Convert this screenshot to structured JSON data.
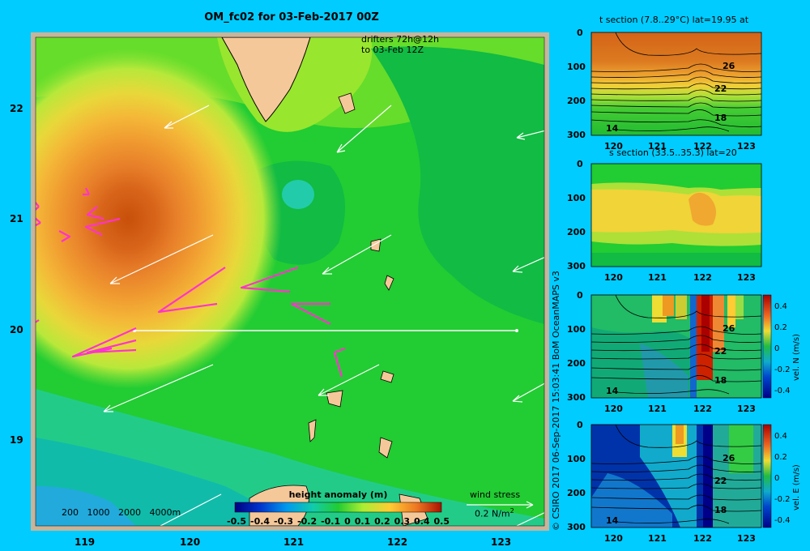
{
  "main_map": {
    "title": "OM_fc02 for 03-Feb-2017 00Z",
    "drifters_line1": "drifters 72h@12h",
    "drifters_line2": "to 03-Feb 12Z",
    "x_ticks": [
      "119",
      "120",
      "121",
      "122",
      "123"
    ],
    "y_ticks": [
      "22",
      "21",
      "20",
      "19"
    ],
    "depth_labels": [
      "200",
      "1000",
      "2000",
      "4000m"
    ],
    "colorbar_title": "height anomaly (m)",
    "colorbar_ticks": [
      "-0.5",
      "-0.4",
      "-0.3",
      "-0.2",
      "-0.1",
      "0",
      "0.1",
      "0.2",
      "0.3",
      "0.4",
      "0.5"
    ],
    "wind_stress_label": "wind stress",
    "wind_stress_unit": "0.2 N/m",
    "wind_stress_exp": "2"
  },
  "credit": "© CSIRO 2017   06-Sep-2017 15:03:41 BoM OceanMAPS v3",
  "panels": [
    {
      "id": "t-section",
      "title": "t section (7.8..29°C) lat=19.95 at",
      "cbar_label": "",
      "y_ticks": [
        "0",
        "100",
        "200",
        "300"
      ],
      "x_ticks": [
        "120",
        "121",
        "122",
        "123"
      ],
      "contour_labels": [
        "26",
        "22",
        "18",
        "14"
      ]
    },
    {
      "id": "s-section",
      "title": "s section (33.5..35.3) lat=20",
      "cbar_label": "",
      "y_ticks": [
        "0",
        "100",
        "200",
        "300"
      ],
      "x_ticks": [
        "120",
        "121",
        "122",
        "123"
      ],
      "contour_labels": []
    },
    {
      "id": "n-velocity",
      "title": "",
      "cbar_label": "vel. N (m/s)",
      "y_ticks": [
        "0",
        "100",
        "200",
        "300"
      ],
      "x_ticks": [
        "120",
        "121",
        "122",
        "123"
      ],
      "contour_labels": [
        "26",
        "22",
        "18",
        "14"
      ],
      "cbar_ticks": [
        "0.4",
        "0.2",
        "0",
        "-0.2",
        "-0.4"
      ]
    },
    {
      "id": "e-velocity",
      "title": "",
      "cbar_label": "vel. E (m/s)",
      "y_ticks": [
        "0",
        "100",
        "200",
        "300"
      ],
      "x_ticks": [
        "120",
        "121",
        "122",
        "123"
      ],
      "contour_labels": [
        "26",
        "22",
        "18",
        "14"
      ],
      "cbar_ticks": [
        "0.4",
        "0.2",
        "0",
        "-0.2",
        "-0.4"
      ]
    }
  ],
  "colors": {
    "background": "#00ccff",
    "land": "#f5c89a",
    "drifter": "#ff33cc"
  }
}
